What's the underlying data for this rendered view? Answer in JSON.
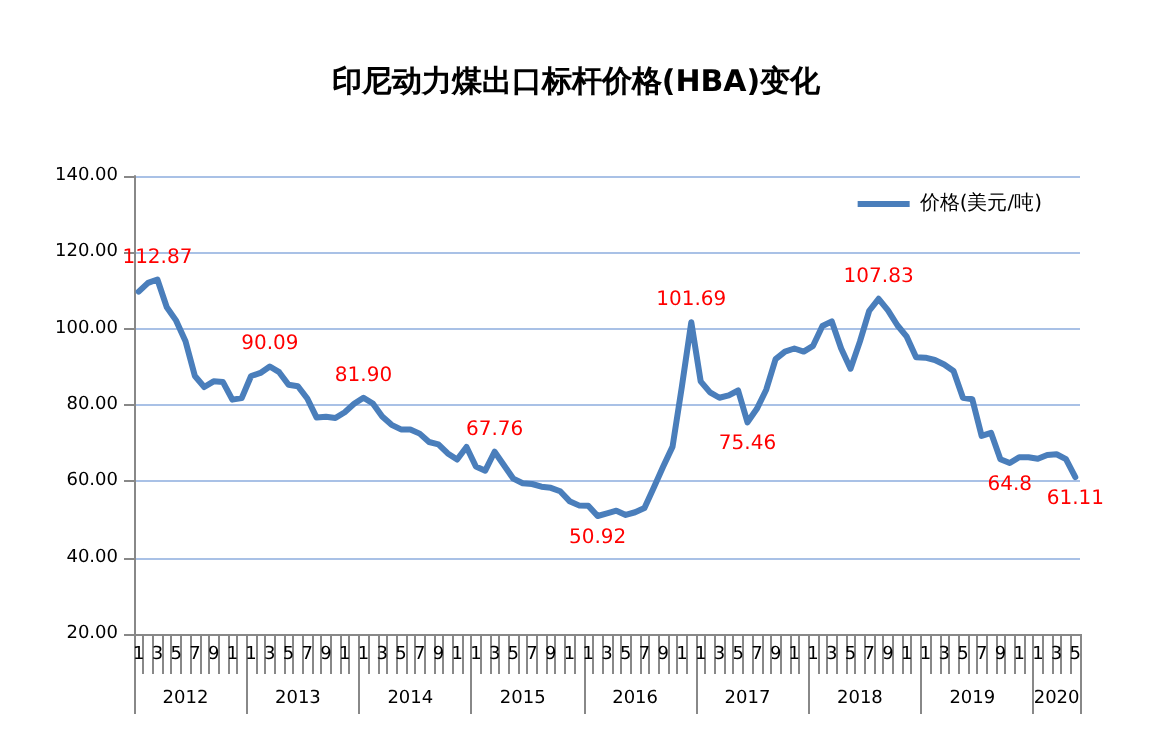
{
  "chart_data": {
    "type": "line",
    "title": "印尼动力煤出口标杆价格(HBA)变化",
    "categories": [
      "1",
      null,
      "3",
      null,
      "5",
      null,
      "7",
      null,
      "9",
      null,
      "1",
      null,
      "1",
      null,
      "3",
      null,
      "5",
      null,
      "7",
      null,
      "9",
      null,
      "1",
      null,
      "1",
      null,
      "3",
      null,
      "5",
      null,
      "7",
      null,
      "9",
      null,
      "1",
      null,
      "1",
      null,
      "3",
      null,
      "5",
      null,
      "7",
      null,
      "9",
      null,
      "1",
      null,
      "1",
      null,
      "3",
      null,
      "5",
      null,
      "7",
      null,
      "9",
      null,
      "1",
      null,
      "1",
      null,
      "3",
      null,
      "5",
      null,
      "7",
      null,
      "9",
      null,
      "1",
      null,
      "1",
      null,
      "3",
      null,
      "5",
      null,
      "7",
      null,
      "9",
      null,
      "1",
      null,
      "1",
      null,
      "3",
      null,
      "5",
      null,
      "7",
      null,
      "9",
      null,
      "1",
      null,
      "1",
      null,
      "3",
      null,
      "5"
    ],
    "series": [
      {
        "name": "价格(美元/吨)",
        "color": "#4a7ebb",
        "values": [
          109.7,
          112.0,
          112.87,
          105.6,
          102.1,
          96.7,
          87.6,
          84.7,
          86.2,
          86.0,
          81.4,
          81.8,
          87.6,
          88.4,
          90.09,
          88.6,
          85.3,
          84.9,
          81.7,
          76.7,
          76.9,
          76.6,
          78.1,
          80.3,
          81.9,
          80.4,
          77.0,
          74.8,
          73.6,
          73.6,
          72.5,
          70.3,
          69.7,
          67.3,
          65.7,
          69.0,
          63.9,
          62.8,
          67.76,
          64.2,
          60.7,
          59.5,
          59.3,
          58.6,
          58.3,
          57.4,
          54.8,
          53.7,
          53.6,
          50.92,
          51.6,
          52.3,
          51.2,
          51.9,
          53.0,
          58.4,
          63.9,
          69.1,
          84.9,
          101.69,
          86.2,
          83.3,
          81.9,
          82.5,
          83.8,
          75.46,
          79.0,
          84.0,
          92.0,
          94.0,
          94.8,
          94.0,
          95.5,
          100.7,
          101.9,
          94.8,
          89.5,
          96.6,
          104.7,
          107.83,
          104.8,
          100.9,
          97.9,
          92.5,
          92.4,
          91.8,
          90.6,
          88.9,
          81.9,
          81.5,
          71.9,
          72.7,
          65.8,
          64.8,
          66.3,
          66.3,
          65.9,
          66.9,
          67.1,
          65.8,
          61.11
        ],
        "value_labels": [
          null,
          null,
          "112.87",
          null,
          null,
          null,
          null,
          null,
          null,
          null,
          null,
          null,
          null,
          null,
          "90.09",
          null,
          null,
          null,
          null,
          null,
          null,
          null,
          null,
          null,
          "81.90",
          null,
          null,
          null,
          null,
          null,
          null,
          null,
          null,
          null,
          null,
          null,
          null,
          null,
          "67.76",
          null,
          null,
          null,
          null,
          null,
          null,
          null,
          null,
          null,
          null,
          "50.92",
          null,
          null,
          null,
          null,
          null,
          null,
          null,
          null,
          null,
          "101.69",
          null,
          null,
          null,
          null,
          null,
          "75.46",
          null,
          null,
          null,
          null,
          null,
          null,
          null,
          null,
          null,
          null,
          null,
          null,
          null,
          "107.83",
          null,
          null,
          null,
          null,
          null,
          null,
          null,
          null,
          null,
          null,
          null,
          null,
          null,
          "64.8",
          null,
          null,
          null,
          null,
          null,
          null,
          "61.11"
        ]
      }
    ],
    "annotations": [
      "2012",
      "2013",
      "2014",
      "2015",
      "2016",
      "2017",
      "2018",
      "2019",
      "2020"
    ],
    "ylim": [
      20,
      140
    ],
    "yticks": [
      {
        "value": 20,
        "label": "20.00"
      },
      {
        "value": 40,
        "label": "40.00"
      },
      {
        "value": 60,
        "label": "60.00"
      },
      {
        "value": 80,
        "label": "80.00"
      },
      {
        "value": 100,
        "label": "100.00"
      },
      {
        "value": 120,
        "label": "120.00"
      },
      {
        "value": 140,
        "label": "140.00"
      }
    ],
    "grid": "y",
    "legend": "top right",
    "marker": "none",
    "line_style": "solid"
  }
}
